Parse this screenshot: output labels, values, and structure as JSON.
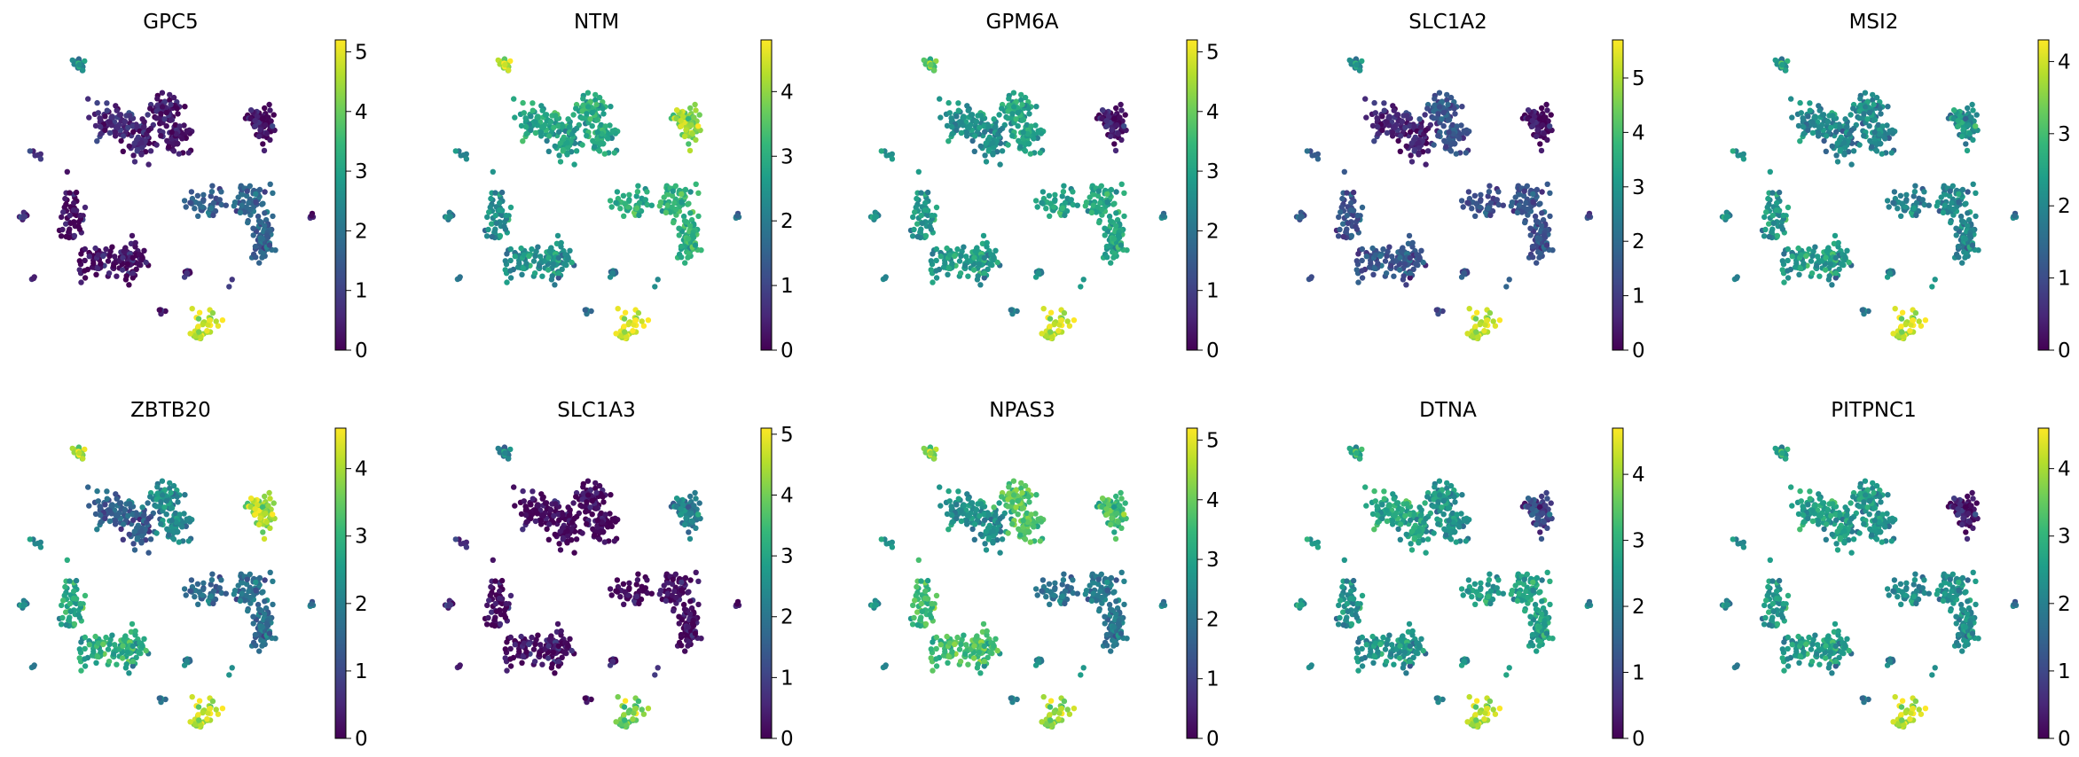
{
  "chart_data": [
    {
      "type": "scatter",
      "subtype": "umap-feature-plot",
      "title": "GPC5",
      "colormap": "viridis",
      "colorbar": {
        "min": 0,
        "max": 5.2,
        "ticks": [
          0,
          1,
          2,
          3,
          4,
          5
        ]
      },
      "cluster_levels": {
        "top-left": 0.6,
        "top-center": 0.3,
        "top-right": 0.2,
        "mid-right": 1.6,
        "left-lower": 0.2,
        "small-bottom": 4.8,
        "small-top": 2.5,
        "small-blobs": 0.6
      }
    },
    {
      "type": "scatter",
      "subtype": "umap-feature-plot",
      "title": "NTM",
      "colormap": "viridis",
      "colorbar": {
        "min": 0,
        "max": 4.8,
        "ticks": [
          0,
          1,
          2,
          3,
          4
        ]
      },
      "cluster_levels": {
        "top-left": 2.8,
        "top-center": 2.9,
        "top-right": 4.0,
        "mid-right": 3.0,
        "left-lower": 2.4,
        "small-bottom": 4.6,
        "small-top": 4.3,
        "small-blobs": 2.0
      }
    },
    {
      "type": "scatter",
      "subtype": "umap-feature-plot",
      "title": "GPM6A",
      "colormap": "viridis",
      "colorbar": {
        "min": 0,
        "max": 5.2,
        "ticks": [
          0,
          1,
          2,
          3,
          4,
          5
        ]
      },
      "cluster_levels": {
        "top-left": 2.6,
        "top-center": 3.0,
        "top-right": 0.3,
        "mid-right": 3.0,
        "left-lower": 2.8,
        "small-bottom": 4.8,
        "small-top": 3.8,
        "small-blobs": 2.5
      }
    },
    {
      "type": "scatter",
      "subtype": "umap-feature-plot",
      "title": "SLC1A2",
      "colormap": "viridis",
      "colorbar": {
        "min": 0,
        "max": 5.7,
        "ticks": [
          0,
          1,
          2,
          3,
          4,
          5
        ]
      },
      "cluster_levels": {
        "top-left": 0.6,
        "top-center": 1.5,
        "top-right": 0.2,
        "mid-right": 1.4,
        "left-lower": 1.5,
        "small-bottom": 5.2,
        "small-top": 2.8,
        "small-blobs": 1.5
      }
    },
    {
      "type": "scatter",
      "subtype": "umap-feature-plot",
      "title": "MSI2",
      "colormap": "viridis",
      "colorbar": {
        "min": 0,
        "max": 4.3,
        "ticks": [
          0,
          1,
          2,
          3,
          4
        ]
      },
      "cluster_levels": {
        "top-left": 2.0,
        "top-center": 2.0,
        "top-right": 2.2,
        "mid-right": 1.9,
        "left-lower": 2.3,
        "small-bottom": 4.0,
        "small-top": 2.3,
        "small-blobs": 2.0
      }
    },
    {
      "type": "scatter",
      "subtype": "umap-feature-plot",
      "title": "ZBTB20",
      "colormap": "viridis",
      "colorbar": {
        "min": 0,
        "max": 4.6,
        "ticks": [
          0,
          1,
          2,
          3,
          4
        ]
      },
      "cluster_levels": {
        "top-left": 1.4,
        "top-center": 2.2,
        "top-right": 4.0,
        "mid-right": 1.6,
        "left-lower": 2.8,
        "small-bottom": 4.2,
        "small-top": 4.0,
        "small-blobs": 2.0
      }
    },
    {
      "type": "scatter",
      "subtype": "umap-feature-plot",
      "title": "SLC1A3",
      "colormap": "viridis",
      "colorbar": {
        "min": 0,
        "max": 5.1,
        "ticks": [
          0,
          1,
          2,
          3,
          4,
          5
        ]
      },
      "cluster_levels": {
        "top-left": 0.1,
        "top-center": 0.1,
        "top-right": 2.2,
        "mid-right": 0.1,
        "left-lower": 0.2,
        "small-bottom": 4.0,
        "small-top": 2.2,
        "small-blobs": 0.5
      }
    },
    {
      "type": "scatter",
      "subtype": "umap-feature-plot",
      "title": "NPAS3",
      "colormap": "viridis",
      "colorbar": {
        "min": 0,
        "max": 5.2,
        "ticks": [
          0,
          1,
          2,
          3,
          4,
          5
        ]
      },
      "cluster_levels": {
        "top-left": 2.6,
        "top-center": 3.8,
        "top-right": 3.6,
        "mid-right": 2.0,
        "left-lower": 3.6,
        "small-bottom": 4.4,
        "small-top": 4.2,
        "small-blobs": 2.5
      }
    },
    {
      "type": "scatter",
      "subtype": "umap-feature-plot",
      "title": "DTNA",
      "colormap": "viridis",
      "colorbar": {
        "min": 0,
        "max": 4.7,
        "ticks": [
          0,
          1,
          2,
          3,
          4
        ]
      },
      "cluster_levels": {
        "top-left": 2.8,
        "top-center": 2.4,
        "top-right": 1.0,
        "mid-right": 2.6,
        "left-lower": 2.4,
        "small-bottom": 4.2,
        "small-top": 2.8,
        "small-blobs": 2.4
      }
    },
    {
      "type": "scatter",
      "subtype": "umap-feature-plot",
      "title": "PITPNC1",
      "colormap": "viridis",
      "colorbar": {
        "min": 0,
        "max": 4.6,
        "ticks": [
          0,
          1,
          2,
          3,
          4
        ]
      },
      "cluster_levels": {
        "top-left": 2.6,
        "top-center": 2.4,
        "top-right": 0.3,
        "mid-right": 2.2,
        "left-lower": 2.5,
        "small-bottom": 4.2,
        "small-top": 2.6,
        "small-blobs": 2.0
      }
    }
  ]
}
